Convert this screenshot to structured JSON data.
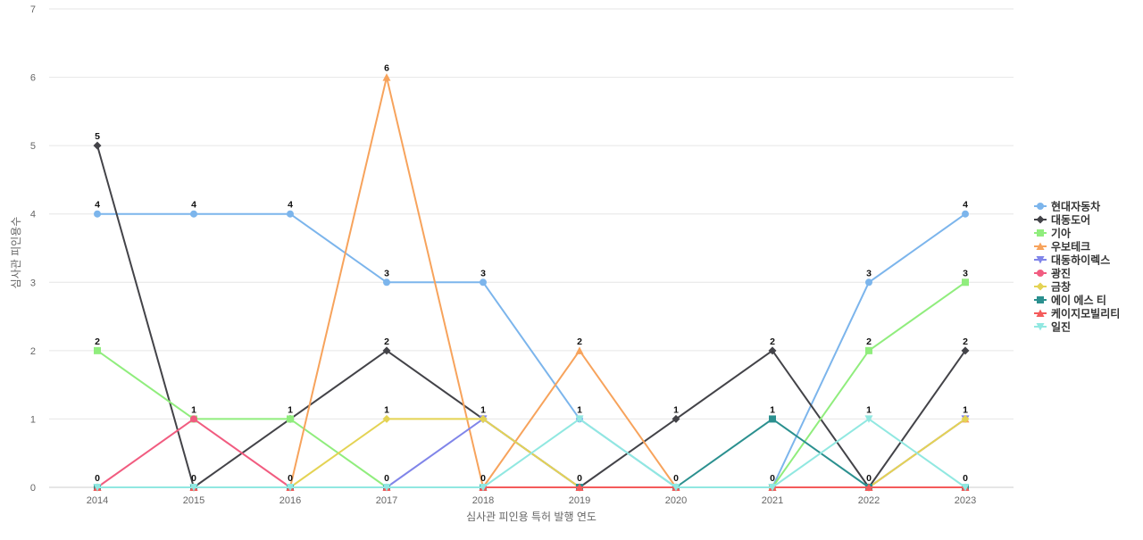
{
  "chart_data": {
    "type": "line",
    "x": [
      "2014",
      "2015",
      "2016",
      "2017",
      "2018",
      "2019",
      "2020",
      "2021",
      "2022",
      "2023"
    ],
    "xlabel": "심사관 피인용 특허 발행 연도",
    "ylabel": "심사관 피인용수",
    "ylim": [
      0,
      7
    ],
    "yticks": [
      0,
      1,
      2,
      3,
      4,
      5,
      6,
      7
    ],
    "grid": true,
    "legend_position": "right",
    "series": [
      {
        "name": "현대자동차",
        "color": "#7cb5ec",
        "marker": "circle",
        "values": [
          4,
          4,
          4,
          3,
          3,
          1,
          0,
          0,
          3,
          4
        ]
      },
      {
        "name": "대동도어",
        "color": "#434348",
        "marker": "diamond",
        "values": [
          5,
          0,
          1,
          2,
          1,
          0,
          1,
          2,
          0,
          2
        ]
      },
      {
        "name": "기아",
        "color": "#90ed7d",
        "marker": "square",
        "values": [
          2,
          1,
          1,
          0,
          0,
          0,
          0,
          0,
          2,
          3
        ]
      },
      {
        "name": "우보테크",
        "color": "#f7a35c",
        "marker": "triangle",
        "values": [
          0,
          0,
          0,
          6,
          0,
          2,
          0,
          0,
          0,
          1
        ]
      },
      {
        "name": "대동하이렉스",
        "color": "#8085e9",
        "marker": "triangle-down",
        "values": [
          0,
          0,
          0,
          0,
          1,
          0,
          0,
          0,
          0,
          1
        ]
      },
      {
        "name": "광진",
        "color": "#f15c80",
        "marker": "circle",
        "values": [
          0,
          1,
          0,
          0,
          0,
          0,
          0,
          0,
          0,
          0
        ]
      },
      {
        "name": "금창",
        "color": "#e4d354",
        "marker": "diamond",
        "values": [
          0,
          0,
          0,
          1,
          1,
          0,
          0,
          0,
          0,
          1
        ]
      },
      {
        "name": "에이 에스 티",
        "color": "#2b908f",
        "marker": "square",
        "values": [
          0,
          0,
          0,
          0,
          0,
          0,
          0,
          1,
          0,
          0
        ]
      },
      {
        "name": "케이지모빌리티",
        "color": "#f45b5b",
        "marker": "triangle",
        "values": [
          0,
          0,
          0,
          0,
          0,
          0,
          0,
          0,
          0,
          0
        ]
      },
      {
        "name": "일진",
        "color": "#91e8e1",
        "marker": "triangle-down",
        "values": [
          0,
          0,
          0,
          0,
          0,
          1,
          0,
          0,
          1,
          0
        ]
      }
    ],
    "data_labels": [
      {
        "x": "2014",
        "values": [
          4,
          5,
          2,
          0
        ]
      },
      {
        "x": "2015",
        "values": [
          4,
          1,
          0
        ]
      },
      {
        "x": "2016",
        "values": [
          4,
          1,
          0
        ]
      },
      {
        "x": "2017",
        "values": [
          6,
          3,
          2,
          1,
          0
        ]
      },
      {
        "x": "2018",
        "values": [
          3,
          1,
          0
        ]
      },
      {
        "x": "2019",
        "values": [
          2,
          1,
          0
        ]
      },
      {
        "x": "2020",
        "values": [
          1,
          0
        ]
      },
      {
        "x": "2021",
        "values": [
          2,
          1,
          0
        ]
      },
      {
        "x": "2022",
        "values": [
          3,
          2,
          1,
          0
        ]
      },
      {
        "x": "2023",
        "values": [
          4,
          3,
          2,
          1,
          0
        ]
      }
    ]
  }
}
